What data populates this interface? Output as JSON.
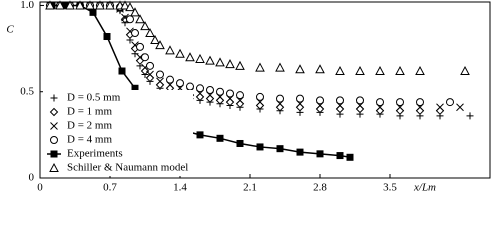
{
  "chart_data": {
    "type": "scatter",
    "xlabel": "x/Lm",
    "ylabel": "C",
    "xlim": [
      0,
      4.5
    ],
    "ylim": [
      0,
      1.02
    ],
    "xticks": [
      0,
      0.7,
      1.4,
      2.1,
      2.8,
      3.5
    ],
    "yticks": [
      0,
      0.5,
      {
        "value": 1,
        "label": "1.0"
      }
    ],
    "legend": "lower left",
    "series": [
      {
        "name": "D = 0.5 mm",
        "marker": "plus",
        "color": "#000000",
        "line": false,
        "x": [
          0.1,
          0.2,
          0.3,
          0.4,
          0.5,
          0.6,
          0.7,
          0.8,
          0.85,
          0.9,
          0.95,
          1.0,
          1.05,
          1.1,
          1.2,
          1.3,
          1.4,
          1.5,
          1.6,
          1.7,
          1.8,
          1.9,
          2.0,
          2.2,
          2.4,
          2.6,
          2.8,
          3.0,
          3.2,
          3.4,
          3.6,
          3.8,
          4.0,
          4.3
        ],
        "values": [
          1,
          1,
          1,
          1,
          1,
          1,
          1,
          0.97,
          0.9,
          0.8,
          0.72,
          0.65,
          0.6,
          0.56,
          0.52,
          0.5,
          0.48,
          0.46,
          0.45,
          0.44,
          0.43,
          0.42,
          0.41,
          0.4,
          0.39,
          0.38,
          0.38,
          0.37,
          0.37,
          0.37,
          0.36,
          0.36,
          0.36,
          0.36
        ]
      },
      {
        "name": "D = 1 mm",
        "marker": "diamond",
        "color": "#000000",
        "line": false,
        "x": [
          0.1,
          0.2,
          0.3,
          0.4,
          0.5,
          0.6,
          0.7,
          0.8,
          0.85,
          0.9,
          0.95,
          1.0,
          1.05,
          1.1,
          1.2,
          1.3,
          1.4,
          1.5,
          1.6,
          1.7,
          1.8,
          1.9,
          2.0,
          2.2,
          2.4,
          2.6,
          2.8,
          3.0,
          3.2,
          3.4,
          3.6,
          3.8,
          4.0
        ],
        "values": [
          1,
          1,
          1,
          1,
          1,
          1,
          1,
          0.98,
          0.92,
          0.83,
          0.75,
          0.68,
          0.62,
          0.58,
          0.54,
          0.52,
          0.5,
          0.48,
          0.47,
          0.46,
          0.45,
          0.44,
          0.43,
          0.42,
          0.41,
          0.41,
          0.4,
          0.4,
          0.4,
          0.39,
          0.39,
          0.39,
          0.39
        ]
      },
      {
        "name": "D = 2 mm",
        "marker": "cross",
        "color": "#000000",
        "line": false,
        "x": [
          0.1,
          0.2,
          0.3,
          0.4,
          0.5,
          0.6,
          0.7,
          0.8,
          0.85,
          0.9,
          0.95,
          1.0,
          1.05,
          1.1,
          1.2,
          1.3,
          1.4,
          1.5,
          1.6,
          1.7,
          1.8,
          1.9,
          2.0,
          2.2,
          2.4,
          2.6,
          2.8,
          3.0,
          3.2,
          3.4,
          3.6,
          3.8,
          4.0,
          4.2
        ],
        "values": [
          1,
          1,
          1,
          1,
          1,
          1,
          1,
          0.98,
          0.93,
          0.85,
          0.77,
          0.7,
          0.64,
          0.6,
          0.56,
          0.54,
          0.52,
          0.5,
          0.49,
          0.48,
          0.47,
          0.46,
          0.45,
          0.44,
          0.43,
          0.43,
          0.42,
          0.42,
          0.42,
          0.41,
          0.41,
          0.41,
          0.41,
          0.41
        ]
      },
      {
        "name": "D = 4 mm",
        "marker": "circle",
        "color": "#000000",
        "line": false,
        "x": [
          0.1,
          0.2,
          0.3,
          0.4,
          0.5,
          0.6,
          0.7,
          0.8,
          0.9,
          0.95,
          1.0,
          1.05,
          1.1,
          1.2,
          1.3,
          1.4,
          1.5,
          1.6,
          1.7,
          1.8,
          1.9,
          2.0,
          2.2,
          2.4,
          2.6,
          2.8,
          3.0,
          3.2,
          3.4,
          3.6,
          3.8,
          4.1
        ],
        "values": [
          1,
          1,
          1,
          1,
          1,
          1,
          1,
          0.99,
          0.92,
          0.84,
          0.76,
          0.7,
          0.65,
          0.6,
          0.57,
          0.55,
          0.53,
          0.52,
          0.51,
          0.5,
          0.49,
          0.48,
          0.47,
          0.46,
          0.46,
          0.45,
          0.45,
          0.45,
          0.44,
          0.44,
          0.44,
          0.44
        ]
      },
      {
        "name": "Experiments",
        "marker": "square",
        "color": "#000000",
        "line": true,
        "x": [
          0.12,
          0.25,
          0.4,
          0.53,
          0.67,
          0.82,
          0.95,
          1.07,
          1.2,
          1.4,
          1.6,
          1.8,
          2.0,
          2.2,
          2.4,
          2.6,
          2.8,
          3.0,
          3.1
        ],
        "values": [
          1,
          1,
          1,
          0.96,
          0.82,
          0.62,
          0.52,
          0.46,
          0.39,
          0.28,
          0.25,
          0.23,
          0.2,
          0.18,
          0.17,
          0.15,
          0.14,
          0.13,
          0.12
        ]
      },
      {
        "name": "Schiller & Naumann model",
        "marker": "triangle",
        "color": "#000000",
        "line": false,
        "x": [
          0.1,
          0.2,
          0.3,
          0.4,
          0.5,
          0.6,
          0.7,
          0.8,
          0.85,
          0.9,
          0.95,
          1.0,
          1.05,
          1.1,
          1.15,
          1.2,
          1.3,
          1.4,
          1.5,
          1.6,
          1.7,
          1.8,
          1.9,
          2.0,
          2.2,
          2.4,
          2.6,
          2.8,
          3.0,
          3.2,
          3.4,
          3.6,
          3.8,
          4.25
        ],
        "values": [
          1,
          1,
          1,
          1,
          1,
          1,
          1,
          1,
          1,
          0.99,
          0.96,
          0.92,
          0.88,
          0.84,
          0.8,
          0.77,
          0.74,
          0.72,
          0.7,
          0.69,
          0.68,
          0.67,
          0.66,
          0.65,
          0.64,
          0.64,
          0.63,
          0.63,
          0.62,
          0.62,
          0.62,
          0.62,
          0.62,
          0.62
        ]
      }
    ]
  }
}
